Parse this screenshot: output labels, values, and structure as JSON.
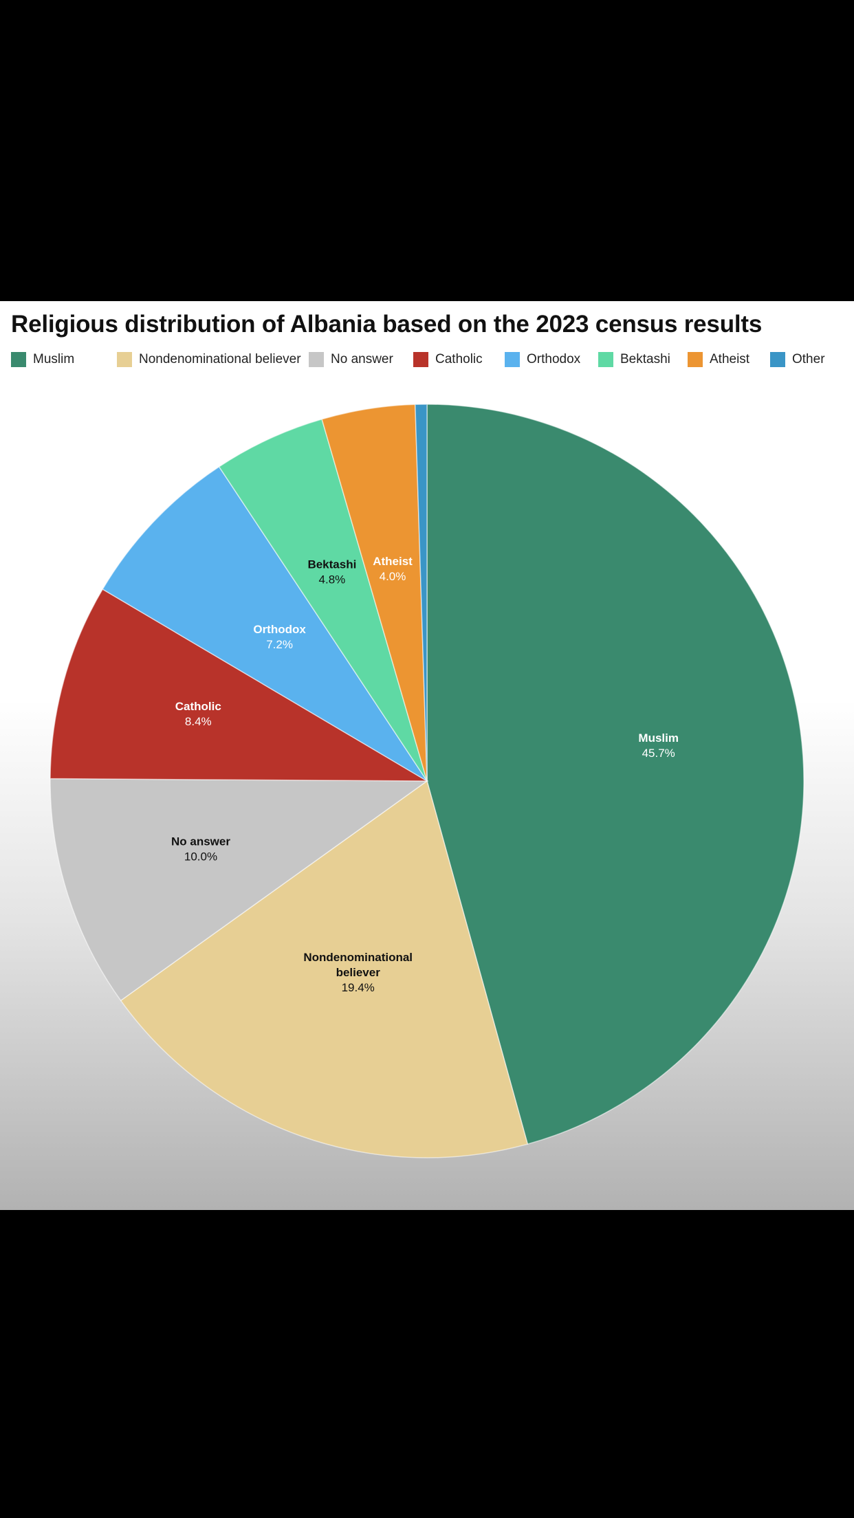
{
  "chart_data": {
    "type": "pie",
    "title": "Religious distribution of Albania based on the 2023 census results",
    "legend_position": "top",
    "slices": [
      {
        "label": "Muslim",
        "value": 45.7,
        "value_label": "45.7%",
        "color": "#3a8a6e",
        "label_color": "#ffffff"
      },
      {
        "label": "Nondenominational believer",
        "label_lines": [
          "Nondenominational",
          "believer"
        ],
        "value": 19.4,
        "value_label": "19.4%",
        "color": "#e7cf94",
        "label_color": "#111111"
      },
      {
        "label": "No answer",
        "value": 10.0,
        "value_label": "10.0%",
        "color": "#c6c6c6",
        "label_color": "#111111"
      },
      {
        "label": "Catholic",
        "value": 8.4,
        "value_label": "8.4%",
        "color": "#b8332a",
        "label_color": "#ffffff"
      },
      {
        "label": "Orthodox",
        "value": 7.2,
        "value_label": "7.2%",
        "color": "#5ab2ee",
        "label_color": "#ffffff"
      },
      {
        "label": "Bektashi",
        "value": 4.8,
        "value_label": "4.8%",
        "color": "#5fd9a4",
        "label_color": "#111111"
      },
      {
        "label": "Atheist",
        "value": 4.0,
        "value_label": "4.0%",
        "color": "#ec9532",
        "label_color": "#ffffff"
      },
      {
        "label": "Other",
        "value": 0.5,
        "value_label": "",
        "color": "#3a95c6",
        "label_color": "#ffffff"
      }
    ]
  }
}
